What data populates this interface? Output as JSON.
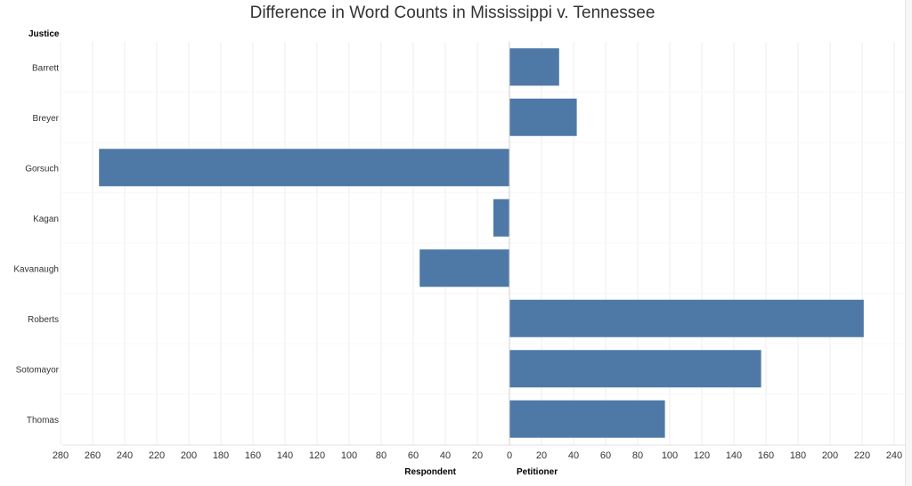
{
  "chart_data": {
    "type": "bar",
    "orientation": "horizontal",
    "title": "Difference in Word Counts in Mississippi v. Tennessee",
    "row_header": "Justice",
    "categories": [
      "Barrett",
      "Breyer",
      "Gorsuch",
      "Kagan",
      "Kavanaugh",
      "Roberts",
      "Sotomayor",
      "Thomas"
    ],
    "values": [
      31,
      42,
      -256,
      -10,
      -56,
      221,
      157,
      97
    ],
    "x_negative_label": "Respondent",
    "x_positive_label": "Petitioner",
    "xlim": [
      -280,
      240
    ],
    "x_ticks": [
      -280,
      -260,
      -240,
      -220,
      -200,
      -180,
      -160,
      -140,
      -120,
      -100,
      -80,
      -60,
      -40,
      -20,
      0,
      20,
      40,
      60,
      80,
      100,
      120,
      140,
      160,
      180,
      200,
      220,
      240
    ],
    "x_tick_labels": [
      "280",
      "260",
      "240",
      "220",
      "200",
      "180",
      "160",
      "140",
      "120",
      "100",
      "80",
      "60",
      "40",
      "20",
      "0",
      "20",
      "40",
      "60",
      "80",
      "100",
      "120",
      "140",
      "160",
      "180",
      "200",
      "220",
      "240"
    ],
    "bar_color": "#4e79a7",
    "grid": true
  }
}
